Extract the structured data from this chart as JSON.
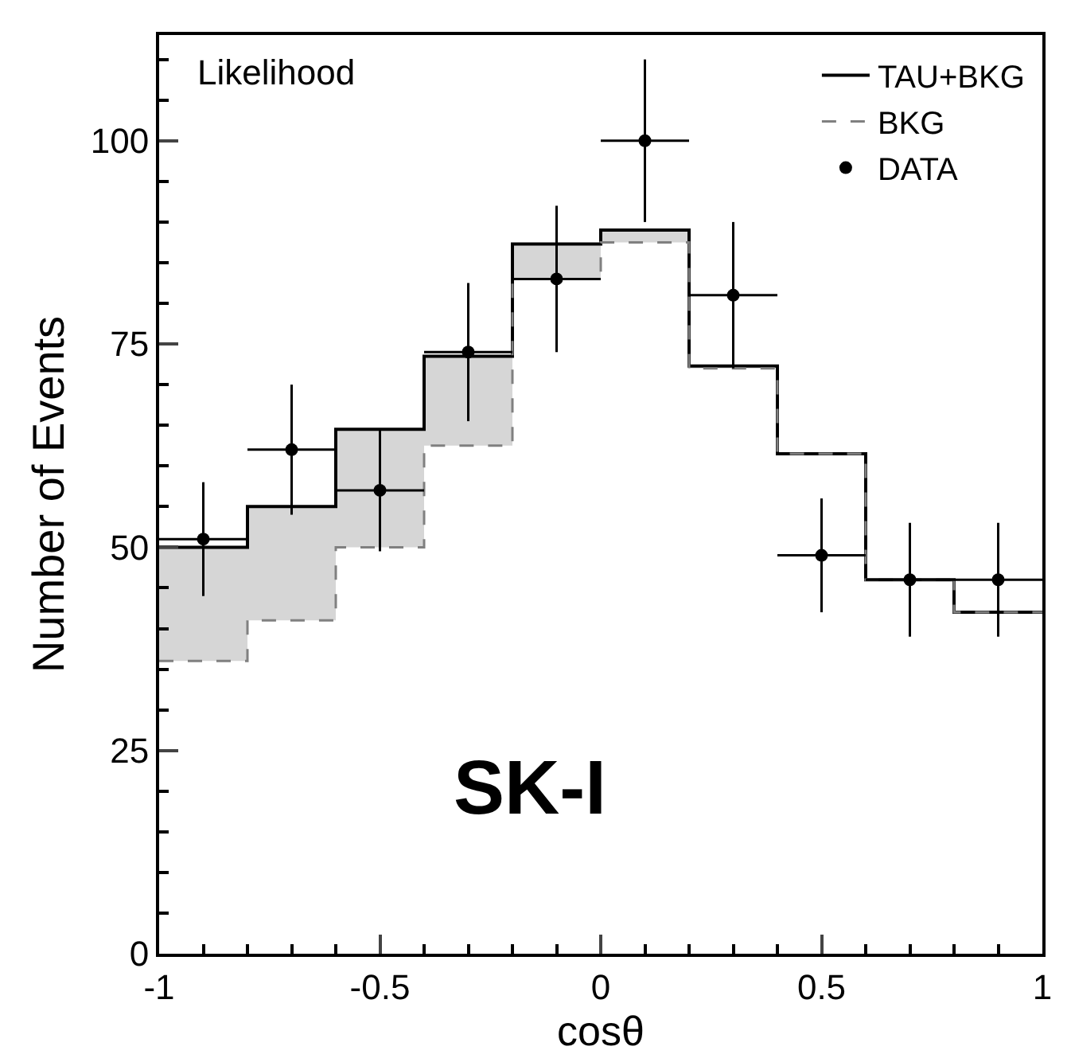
{
  "chart_data": {
    "type": "step",
    "xlabel": "cosθ",
    "ylabel": "Number of Events",
    "series": [
      {
        "name": "TAU+BKG",
        "color": "#000000",
        "line_style": "solid",
        "x": [
          -1,
          -0.8,
          -0.6,
          -0.4,
          -0.2,
          0,
          0.2,
          0.4,
          0.6,
          0.8,
          1
        ],
        "values": [
          50,
          55,
          64.5,
          73.5,
          87.3,
          89,
          72.3,
          61.5,
          46,
          42,
          42
        ],
        "lower": [
          36,
          41,
          50,
          62.5,
          83,
          87.5,
          72,
          61.5,
          46,
          42,
          42
        ],
        "upper": [
          50,
          55,
          64.5,
          73.5,
          87.3,
          89,
          72.3,
          61.5,
          46,
          42,
          42
        ]
      },
      {
        "name": "BKG",
        "color": "#808080",
        "line_style": "dashed",
        "x": [
          -1,
          -0.8,
          -0.6,
          -0.4,
          -0.2,
          0,
          0.2,
          0.4,
          0.6,
          0.8,
          1
        ],
        "values": [
          36,
          41,
          50,
          62.5,
          83,
          87.5,
          72,
          61.5,
          46,
          42,
          42
        ]
      },
      {
        "name": "DATA",
        "type": "scatter",
        "marker": "circle",
        "color": "#000000",
        "x": [
          -0.9,
          -0.7,
          -0.5,
          -0.3,
          -0.1,
          0.1,
          0.3,
          0.5,
          0.7,
          0.9
        ],
        "values": [
          51,
          62,
          57,
          74,
          83,
          100,
          81,
          49,
          46,
          46
        ],
        "errors": [
          7,
          8,
          7.5,
          8.5,
          9,
          10,
          9,
          7,
          7,
          7
        ],
        "xerrors": [
          0.1,
          0.1,
          0.1,
          0.1,
          0.1,
          0.1,
          0.1,
          0.1,
          0.1,
          0.1
        ]
      }
    ],
    "xlim": [
      -1,
      1
    ],
    "xticks": [
      -1,
      -0.5,
      0,
      0.5,
      1
    ],
    "ylim": [
      0,
      113
    ],
    "yticks": [
      0,
      25,
      50,
      75,
      100
    ],
    "legend": "top right",
    "annotations": [
      "Likelihood",
      "SK-I"
    ]
  }
}
